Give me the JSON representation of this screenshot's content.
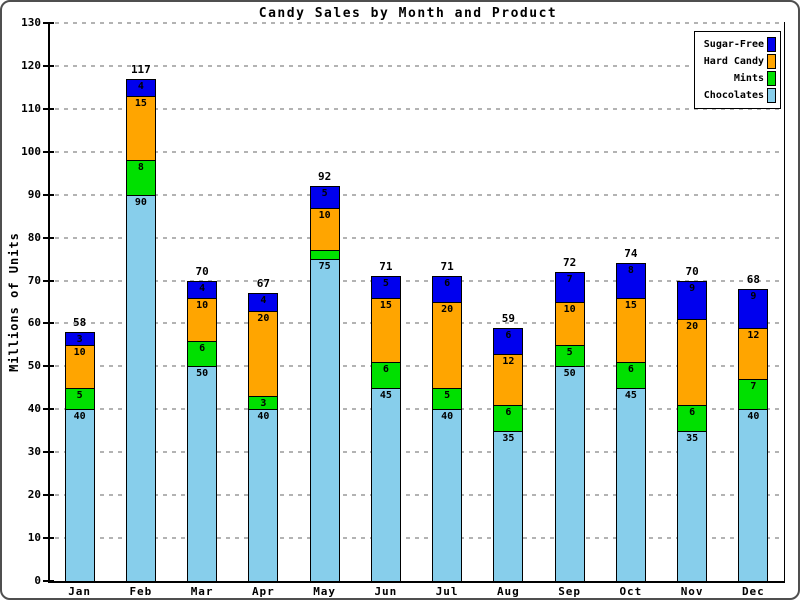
{
  "window": {
    "background": "#ffffff",
    "frame_border_color": "#4f4f4f"
  },
  "chart_data": {
    "type": "bar",
    "stacked": true,
    "title": "Candy Sales by Month and Product",
    "xlabel": "",
    "ylabel": "Millions of Units",
    "ylim": [
      0,
      130
    ],
    "ytick_step": 10,
    "grid": "horizontal dashed gridlines every 10 units",
    "gridline_color": "#b3b3b3",
    "bar_outline_color": "#000000",
    "categories": [
      "Jan",
      "Feb",
      "Mar",
      "Apr",
      "May",
      "Jun",
      "Jul",
      "Aug",
      "Sep",
      "Oct",
      "Nov",
      "Dec"
    ],
    "series": [
      {
        "name": "Chocolates",
        "color": "#87CEEB",
        "values": [
          40,
          90,
          50,
          40,
          75,
          45,
          40,
          35,
          50,
          45,
          35,
          40
        ]
      },
      {
        "name": "Mints",
        "color": "#00E000",
        "values": [
          5,
          8,
          6,
          3,
          2,
          6,
          5,
          6,
          5,
          6,
          6,
          7
        ]
      },
      {
        "name": "Hard Candy",
        "color": "#FFA500",
        "values": [
          10,
          15,
          10,
          20,
          10,
          15,
          20,
          12,
          10,
          15,
          20,
          12
        ]
      },
      {
        "name": "Sugar-Free",
        "color": "#0000EE",
        "values": [
          3,
          4,
          4,
          4,
          5,
          5,
          6,
          6,
          7,
          8,
          9,
          9
        ]
      }
    ],
    "totals": [
      58,
      117,
      70,
      67,
      92,
      71,
      71,
      59,
      72,
      74,
      70,
      68
    ],
    "segment_label_min_value": 3,
    "legend": {
      "position": "top-right",
      "order_top_to_bottom": [
        "Sugar-Free",
        "Hard Candy",
        "Mints",
        "Chocolates"
      ]
    }
  }
}
